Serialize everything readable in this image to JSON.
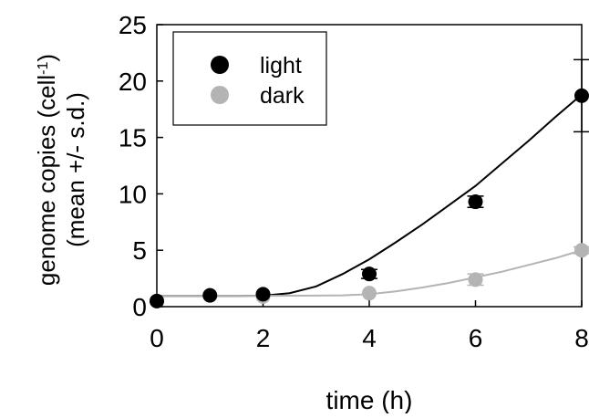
{
  "chart_data": {
    "type": "scatter",
    "title": "",
    "xlabel": "time (h)",
    "ylabel": {
      "line1_prefix": "genome copies (cell",
      "line1_superscript": "-1",
      "line1_suffix": ")",
      "line2": "(mean +/- s.d.)"
    },
    "xlim": [
      0,
      8
    ],
    "ylim": [
      0,
      25
    ],
    "xticks": [
      0,
      2,
      4,
      6,
      8
    ],
    "yticks": [
      0,
      5,
      10,
      15,
      20,
      25
    ],
    "grid": false,
    "legend_position": "top-left",
    "series": [
      {
        "name": "light",
        "color": "#000000",
        "marker": "filled-circle",
        "points": [
          {
            "x": 0,
            "y": 0.5,
            "sd": 0.1
          },
          {
            "x": 1,
            "y": 1.0,
            "sd": 0.15
          },
          {
            "x": 2,
            "y": 1.1,
            "sd": 0.2
          },
          {
            "x": 4,
            "y": 2.9,
            "sd": 0.4
          },
          {
            "x": 6,
            "y": 9.3,
            "sd": 0.5
          },
          {
            "x": 8,
            "y": 18.7,
            "sd": 3.2
          }
        ],
        "fit_curve": [
          [
            0,
            0.95
          ],
          [
            0.5,
            0.95
          ],
          [
            1,
            0.95
          ],
          [
            1.5,
            0.95
          ],
          [
            2,
            0.97
          ],
          [
            2.5,
            1.2
          ],
          [
            3,
            1.8
          ],
          [
            3.5,
            2.9
          ],
          [
            4,
            4.2
          ],
          [
            4.5,
            5.7
          ],
          [
            5,
            7.3
          ],
          [
            5.5,
            9.0
          ],
          [
            6,
            10.7
          ],
          [
            6.5,
            12.7
          ],
          [
            7,
            14.7
          ],
          [
            7.5,
            16.8
          ],
          [
            8,
            18.8
          ]
        ]
      },
      {
        "name": "dark",
        "color": "#b4b4b4",
        "marker": "filled-circle",
        "points": [
          {
            "x": 0,
            "y": 0.5,
            "sd": 0.1
          },
          {
            "x": 1,
            "y": 1.0,
            "sd": 0.1
          },
          {
            "x": 2,
            "y": 0.9,
            "sd": 0.1
          },
          {
            "x": 4,
            "y": 1.2,
            "sd": 0.2
          },
          {
            "x": 6,
            "y": 2.4,
            "sd": 0.5
          },
          {
            "x": 8,
            "y": 5.0,
            "sd": 0.3
          }
        ],
        "fit_curve": [
          [
            0,
            0.95
          ],
          [
            1,
            0.95
          ],
          [
            2,
            0.96
          ],
          [
            3,
            0.98
          ],
          [
            3.5,
            1.0
          ],
          [
            4,
            1.1
          ],
          [
            4.5,
            1.35
          ],
          [
            5,
            1.7
          ],
          [
            5.5,
            2.1
          ],
          [
            6,
            2.6
          ],
          [
            6.5,
            3.1
          ],
          [
            7,
            3.7
          ],
          [
            7.5,
            4.3
          ],
          [
            8,
            5.0
          ]
        ]
      }
    ]
  }
}
